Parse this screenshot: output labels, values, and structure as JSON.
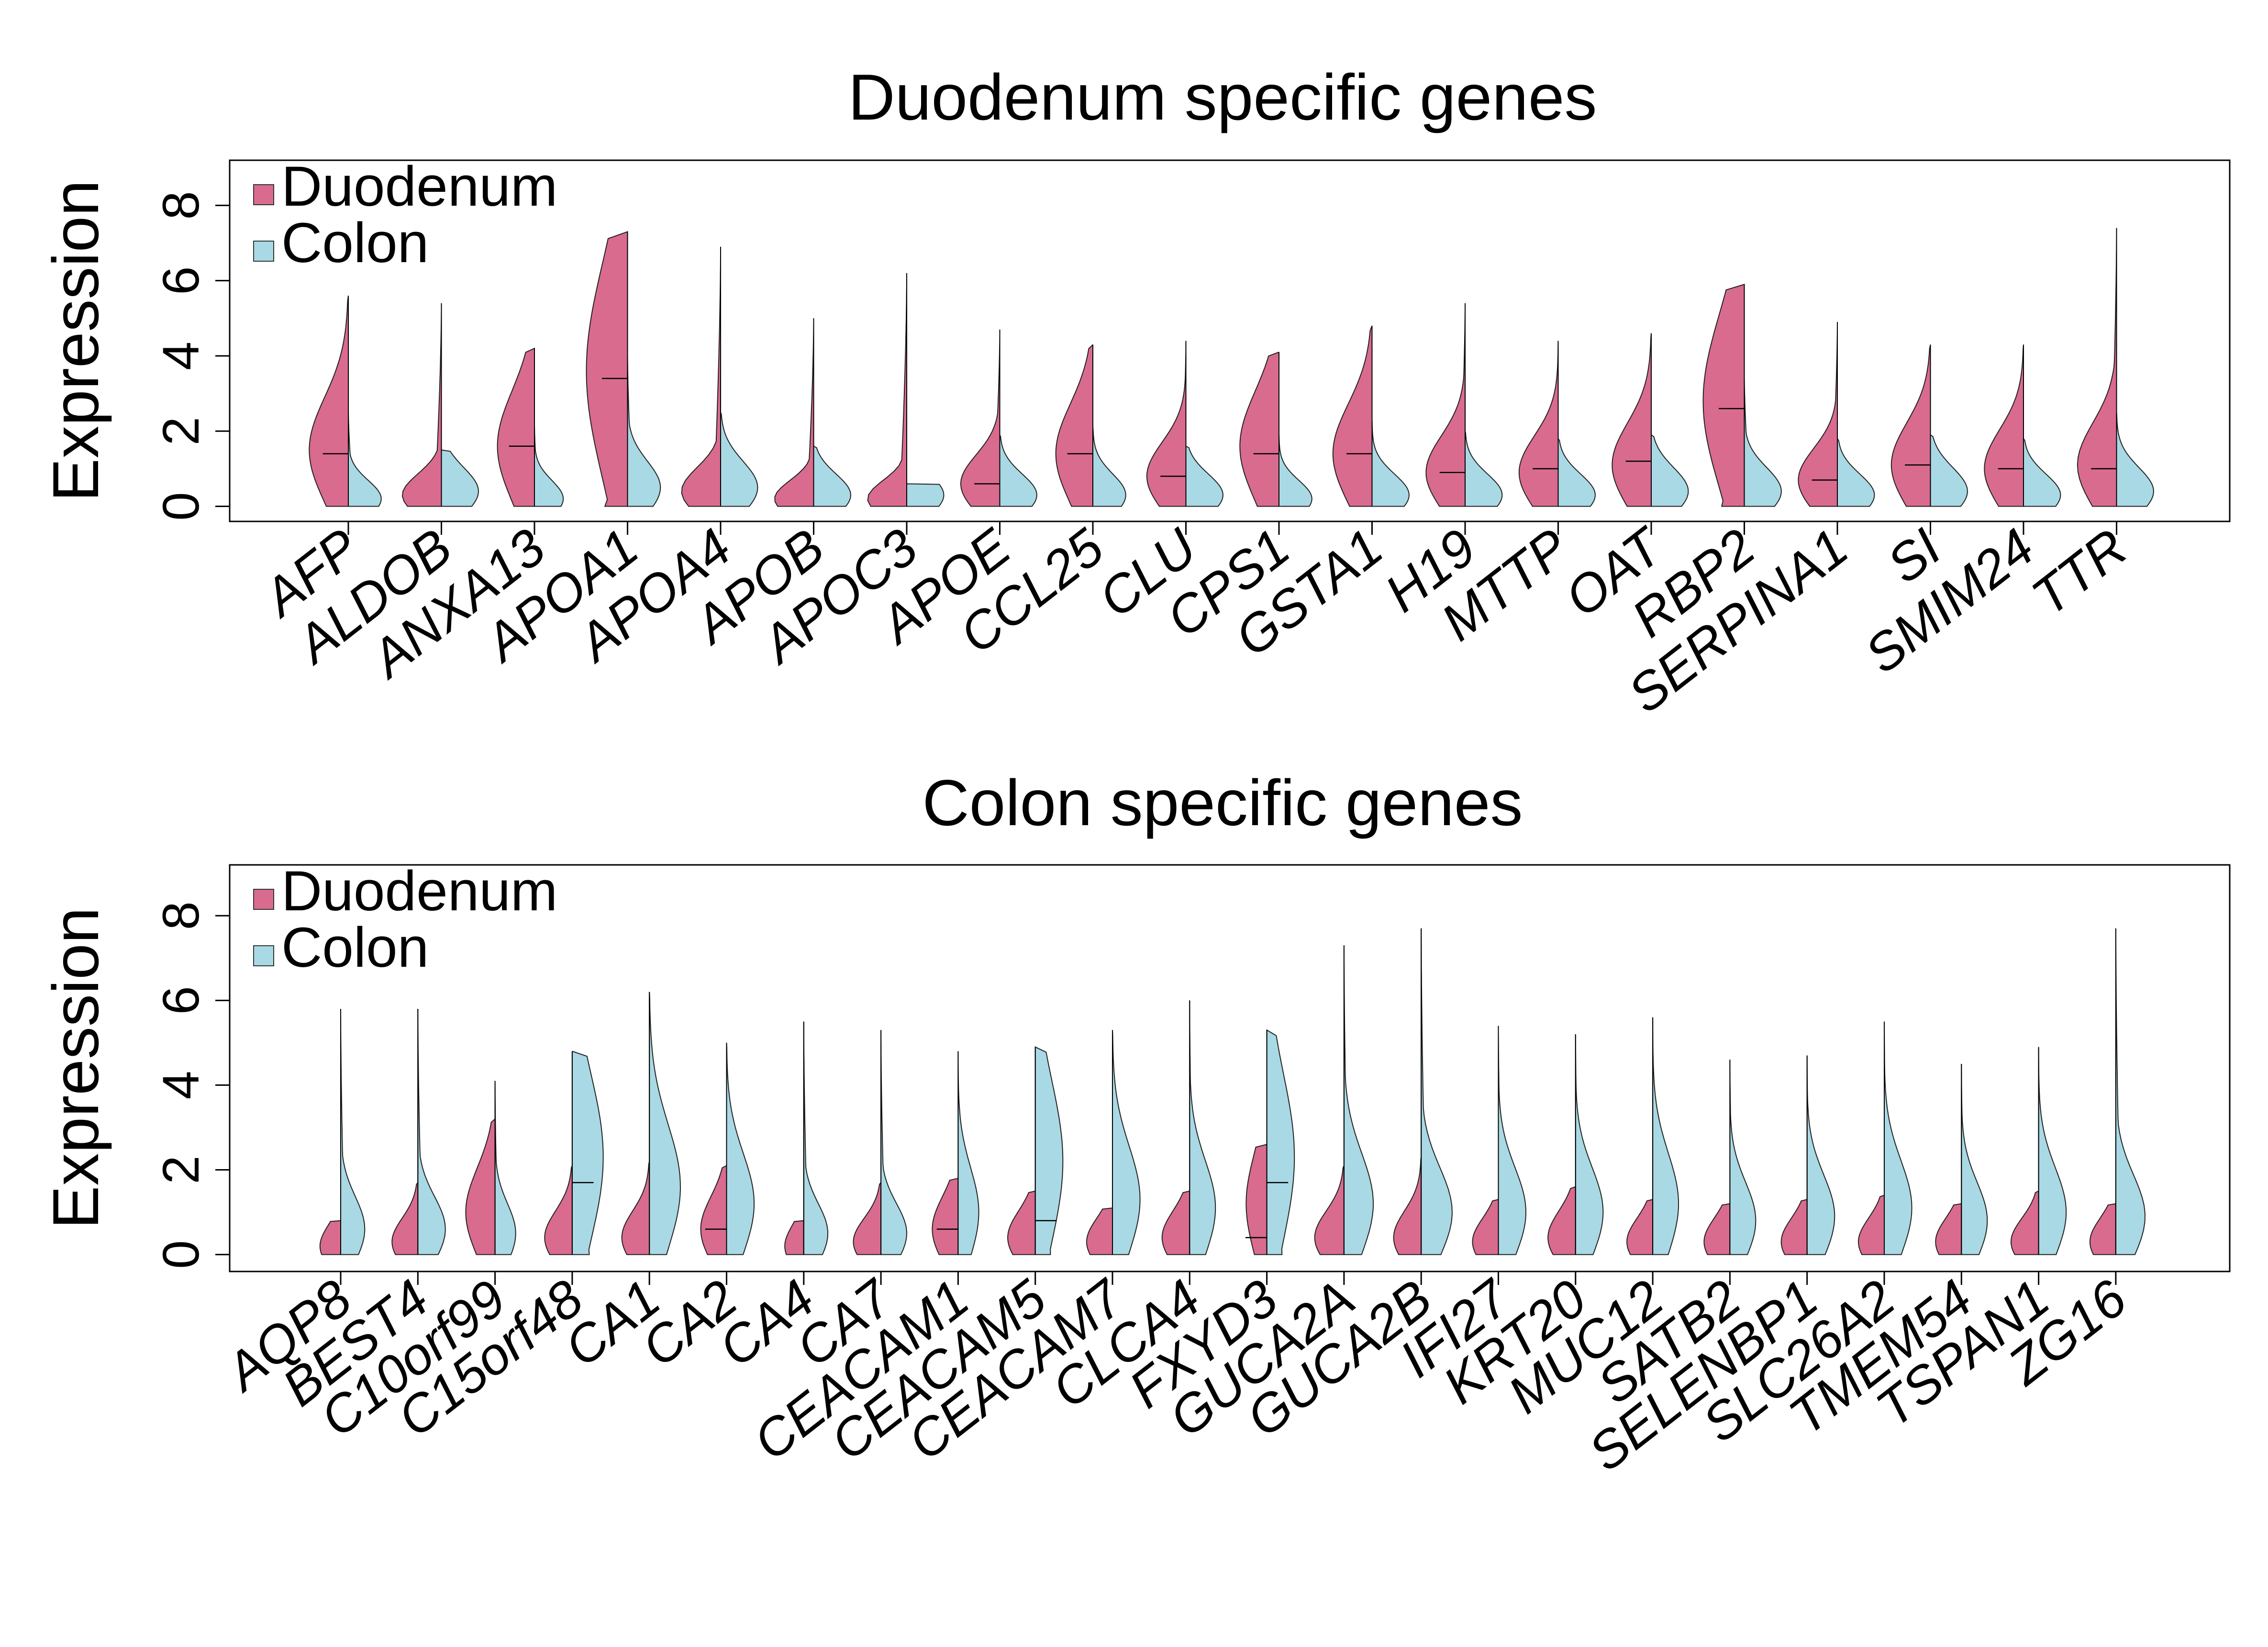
{
  "colors": {
    "duodenum": "#d96b8f",
    "colon": "#a9d9e4"
  },
  "chart_data": [
    {
      "type": "violin",
      "title": "Duodenum specific genes",
      "ylabel": "Expression",
      "ylim": [
        -0.4,
        9.2
      ],
      "yticks": [
        "0",
        "2",
        "4",
        "6",
        "8"
      ],
      "legend": {
        "position": "top-left",
        "entries": [
          "Duodenum",
          "Colon"
        ]
      },
      "categories": [
        "AFP",
        "ALDOB",
        "ANXA13",
        "APOA1",
        "APOA4",
        "APOB",
        "APOC3",
        "APOE",
        "CCL25",
        "CLU",
        "CPS1",
        "GSTA1",
        "H19",
        "MTTP",
        "OAT",
        "RBP2",
        "SERPINA1",
        "SI",
        "SMIM24",
        "TTR"
      ],
      "series": [
        {
          "name": "Duodenum",
          "max": [
            5.6,
            5.4,
            4.2,
            7.3,
            6.9,
            5.0,
            6.2,
            4.7,
            4.3,
            4.4,
            4.1,
            4.8,
            5.4,
            4.4,
            4.6,
            5.9,
            4.9,
            4.3,
            4.3,
            7.4
          ],
          "median": [
            1.4,
            0.0,
            1.6,
            3.4,
            0.0,
            0.0,
            0.0,
            0.6,
            1.4,
            0.8,
            1.4,
            1.4,
            0.9,
            1.0,
            1.2,
            2.6,
            0.7,
            1.1,
            1.0,
            1.0
          ],
          "mode": [
            1.5,
            0.3,
            1.6,
            3.6,
            0.4,
            0.2,
            0.2,
            0.6,
            1.4,
            0.8,
            1.6,
            1.4,
            0.9,
            0.9,
            1.1,
            2.8,
            0.7,
            1.1,
            1.0,
            1.1
          ],
          "width": [
            0.95,
            0.95,
            0.9,
            1.0,
            0.95,
            0.95,
            0.95,
            0.95,
            0.9,
            0.95,
            0.95,
            0.95,
            0.95,
            0.95,
            0.95,
            1.0,
            0.95,
            0.95,
            0.95,
            0.95
          ]
        },
        {
          "name": "Colon",
          "max": [
            2.6,
            1.5,
            2.2,
            4.1,
            2.5,
            1.6,
            0.6,
            1.9,
            2.1,
            1.6,
            1.9,
            2.3,
            2.0,
            1.8,
            1.9,
            3.5,
            1.8,
            1.9,
            1.8,
            2.5
          ],
          "median": [
            0.0,
            0.0,
            0.0,
            0.0,
            0.0,
            0.0,
            0.0,
            0.0,
            0.0,
            0.0,
            0.0,
            0.0,
            0.0,
            0.0,
            0.0,
            0.0,
            0.0,
            0.0,
            0.0,
            0.0
          ],
          "mode": [
            0.2,
            0.4,
            0.2,
            0.5,
            0.5,
            0.3,
            0.3,
            0.3,
            0.3,
            0.3,
            0.2,
            0.3,
            0.3,
            0.3,
            0.4,
            0.4,
            0.3,
            0.4,
            0.3,
            0.4
          ],
          "width": [
            0.8,
            0.9,
            0.7,
            0.8,
            0.9,
            0.9,
            0.9,
            0.9,
            0.8,
            0.9,
            0.8,
            0.9,
            0.9,
            0.9,
            0.9,
            0.9,
            0.9,
            0.9,
            0.9,
            0.9
          ]
        }
      ]
    },
    {
      "type": "violin",
      "title": "Colon specific genes",
      "ylabel": "Expression",
      "ylim": [
        -0.4,
        9.2
      ],
      "yticks": [
        "0",
        "2",
        "4",
        "6",
        "8"
      ],
      "legend": {
        "position": "top-left",
        "entries": [
          "Duodenum",
          "Colon"
        ]
      },
      "categories": [
        "AQP8",
        "BEST4",
        "C10orf99",
        "C15orf48",
        "CA1",
        "CA2",
        "CA4",
        "CA7",
        "CEACAM1",
        "CEACAM5",
        "CEACAM7",
        "CLCA4",
        "FXYD3",
        "GUCA2A",
        "GUCA2B",
        "IFI27",
        "KRT20",
        "MUC12",
        "SATB2",
        "SELENBP1",
        "SLC26A2",
        "TMEM54",
        "TSPAN1",
        "ZG16"
      ],
      "series": [
        {
          "name": "Duodenum",
          "max": [
            0.8,
            1.7,
            3.2,
            2.1,
            2.2,
            2.1,
            0.8,
            1.7,
            1.8,
            1.5,
            1.1,
            1.5,
            2.6,
            2.1,
            2.3,
            1.3,
            1.6,
            1.3,
            1.2,
            1.3,
            1.4,
            1.2,
            1.5,
            1.2
          ],
          "median": [
            0.0,
            0.0,
            0.0,
            0.0,
            0.0,
            0.6,
            0.0,
            0.0,
            0.6,
            0.0,
            0.0,
            0.0,
            0.4,
            0.0,
            0.0,
            0.0,
            0.0,
            0.0,
            0.0,
            0.0,
            0.0,
            0.0,
            0.0,
            0.0
          ],
          "mode": [
            0.2,
            0.3,
            1.0,
            0.4,
            0.4,
            0.6,
            0.2,
            0.3,
            0.6,
            0.4,
            0.3,
            0.4,
            1.2,
            0.4,
            0.4,
            0.3,
            0.4,
            0.3,
            0.3,
            0.3,
            0.3,
            0.3,
            0.3,
            0.3
          ],
          "width": [
            0.6,
            0.75,
            0.85,
            0.8,
            0.8,
            0.75,
            0.55,
            0.8,
            0.75,
            0.8,
            0.75,
            0.8,
            0.6,
            0.85,
            0.8,
            0.75,
            0.8,
            0.75,
            0.75,
            0.75,
            0.75,
            0.75,
            0.8,
            0.75
          ]
        },
        {
          "name": "Colon",
          "max": [
            5.8,
            5.8,
            4.1,
            4.8,
            6.2,
            5.0,
            5.5,
            5.3,
            4.8,
            4.9,
            5.3,
            6.0,
            5.3,
            7.3,
            7.7,
            5.4,
            5.2,
            5.6,
            4.6,
            4.7,
            5.5,
            4.5,
            4.9,
            7.7
          ],
          "median": [
            0.0,
            0.0,
            0.0,
            1.7,
            0.0,
            0.0,
            0.0,
            0.0,
            0.0,
            0.8,
            0.0,
            0.0,
            1.7,
            0.0,
            0.0,
            0.0,
            0.0,
            0.0,
            0.0,
            0.0,
            0.0,
            0.0,
            0.0,
            0.0
          ],
          "mode": [
            0.6,
            0.6,
            0.5,
            2.3,
            1.6,
            1.2,
            0.5,
            0.5,
            1.0,
            2.2,
            1.3,
            1.1,
            2.3,
            1.2,
            1.0,
            1.0,
            1.0,
            1.2,
            0.8,
            0.9,
            1.1,
            0.8,
            1.0,
            0.9
          ],
          "width": [
            0.7,
            0.8,
            0.6,
            0.9,
            0.9,
            0.8,
            0.7,
            0.75,
            0.6,
            0.8,
            0.8,
            0.75,
            0.8,
            0.85,
            0.9,
            0.8,
            0.8,
            0.75,
            0.75,
            0.8,
            0.8,
            0.75,
            0.8,
            0.85
          ]
        }
      ]
    }
  ]
}
